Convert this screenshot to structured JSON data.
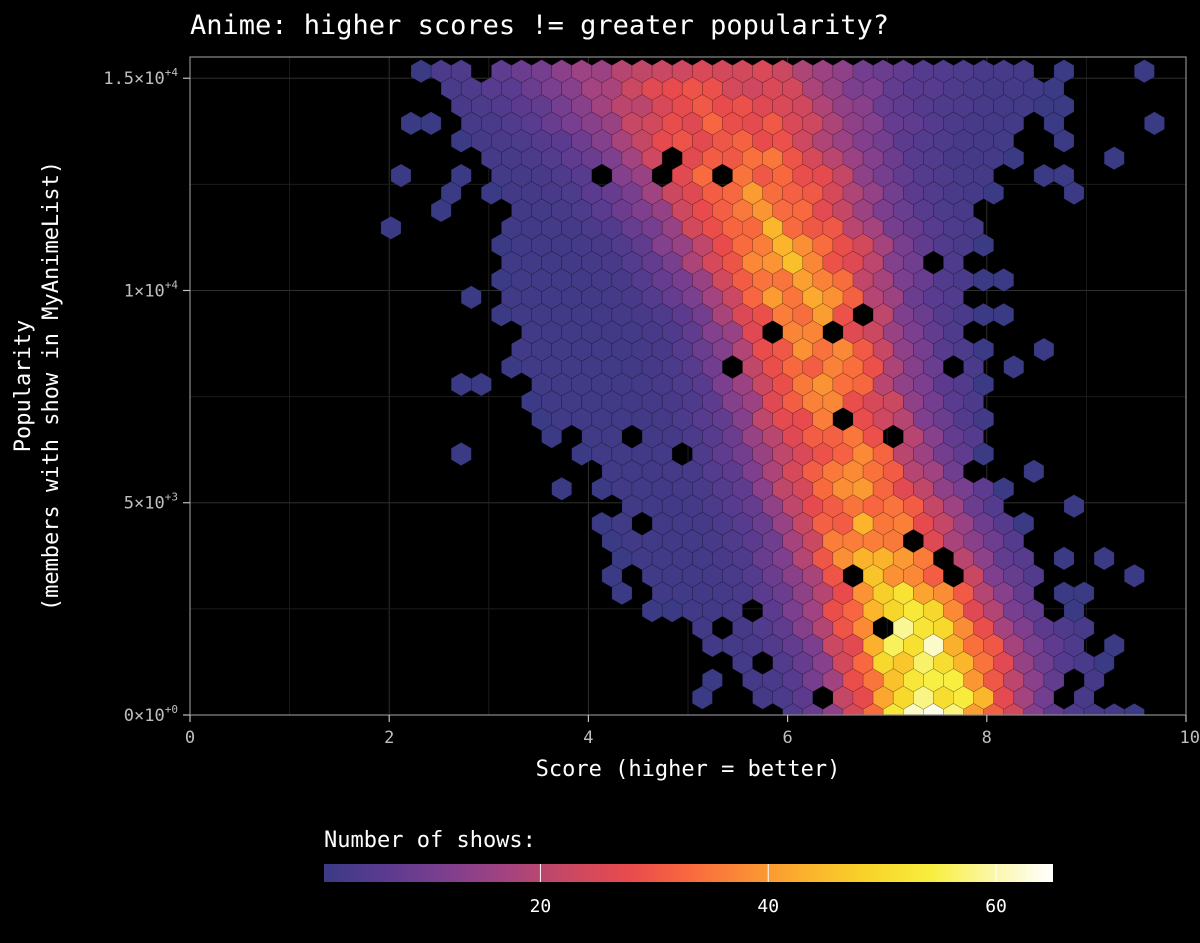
{
  "chart_data": {
    "type": "hexbin",
    "title": "Anime: higher scores != greater popularity?",
    "xlabel": "Score (higher = better)",
    "ylabel_line1": "Popularity",
    "ylabel_line2": "(members with show in MyAnimeList)",
    "xlim": [
      0,
      10
    ],
    "ylim": [
      0,
      15500
    ],
    "x_ticks": [
      {
        "value": 0,
        "label": "0"
      },
      {
        "value": 2,
        "label": "2"
      },
      {
        "value": 4,
        "label": "4"
      },
      {
        "value": 6,
        "label": "6"
      },
      {
        "value": 8,
        "label": "8"
      },
      {
        "value": 10,
        "label": "10"
      }
    ],
    "y_ticks": [
      {
        "value": 0,
        "mant": "0",
        "exp": "+0"
      },
      {
        "value": 5000,
        "mant": "5",
        "exp": "+3"
      },
      {
        "value": 10000,
        "mant": "1",
        "exp": "+4"
      },
      {
        "value": 15000,
        "mant": "1.5",
        "exp": "+4"
      }
    ],
    "grid": true,
    "legend": {
      "title": "Number of shows:",
      "position": "bottom",
      "min": 1,
      "max": 65,
      "ticks": [
        {
          "value": 20,
          "label": "20"
        },
        {
          "value": 40,
          "label": "40"
        },
        {
          "value": 60,
          "label": "60"
        }
      ]
    },
    "colormap": [
      "#3b3a85",
      "#5a3b8f",
      "#7d3f8f",
      "#a3437f",
      "#c94863",
      "#e84a4d",
      "#f8683f",
      "#fb8e35",
      "#fbb42c",
      "#f7d52a",
      "#f8ee3e",
      "#fbf7a8",
      "#ffffff"
    ],
    "density_model": {
      "description": "approximate count surface estimated from hexbin colors",
      "bands": [
        {
          "y": 0,
          "center": 7.45,
          "width": 0.55,
          "peak": 64
        },
        {
          "y": 1500,
          "center": 7.35,
          "width": 0.6,
          "peak": 58
        },
        {
          "y": 3000,
          "center": 7.1,
          "width": 0.62,
          "peak": 46
        },
        {
          "y": 5000,
          "center": 6.75,
          "width": 0.62,
          "peak": 38
        },
        {
          "y": 7000,
          "center": 6.45,
          "width": 0.62,
          "peak": 34
        },
        {
          "y": 9000,
          "center": 6.25,
          "width": 0.62,
          "peak": 38
        },
        {
          "y": 11000,
          "center": 5.95,
          "width": 0.7,
          "peak": 42
        },
        {
          "y": 13000,
          "center": 5.55,
          "width": 0.85,
          "peak": 35
        },
        {
          "y": 15500,
          "center": 5.1,
          "width": 1.2,
          "peak": 25
        }
      ],
      "left_edge": [
        {
          "y": 0,
          "x": 5.9
        },
        {
          "y": 2000,
          "x": 5.0
        },
        {
          "y": 4000,
          "x": 4.4
        },
        {
          "y": 6000,
          "x": 4.1
        },
        {
          "y": 8000,
          "x": 3.3
        },
        {
          "y": 10000,
          "x": 3.2
        },
        {
          "y": 12000,
          "x": 3.2
        },
        {
          "y": 13500,
          "x": 2.9
        },
        {
          "y": 15500,
          "x": 2.4
        }
      ],
      "right_edge": [
        {
          "y": 0,
          "x": 9.3
        },
        {
          "y": 2000,
          "x": 9.0
        },
        {
          "y": 4000,
          "x": 8.3
        },
        {
          "y": 6000,
          "x": 7.9
        },
        {
          "y": 8000,
          "x": 7.9
        },
        {
          "y": 10000,
          "x": 7.8
        },
        {
          "y": 12000,
          "x": 7.9
        },
        {
          "y": 14000,
          "x": 8.4
        },
        {
          "y": 15500,
          "x": 8.6
        }
      ]
    }
  }
}
